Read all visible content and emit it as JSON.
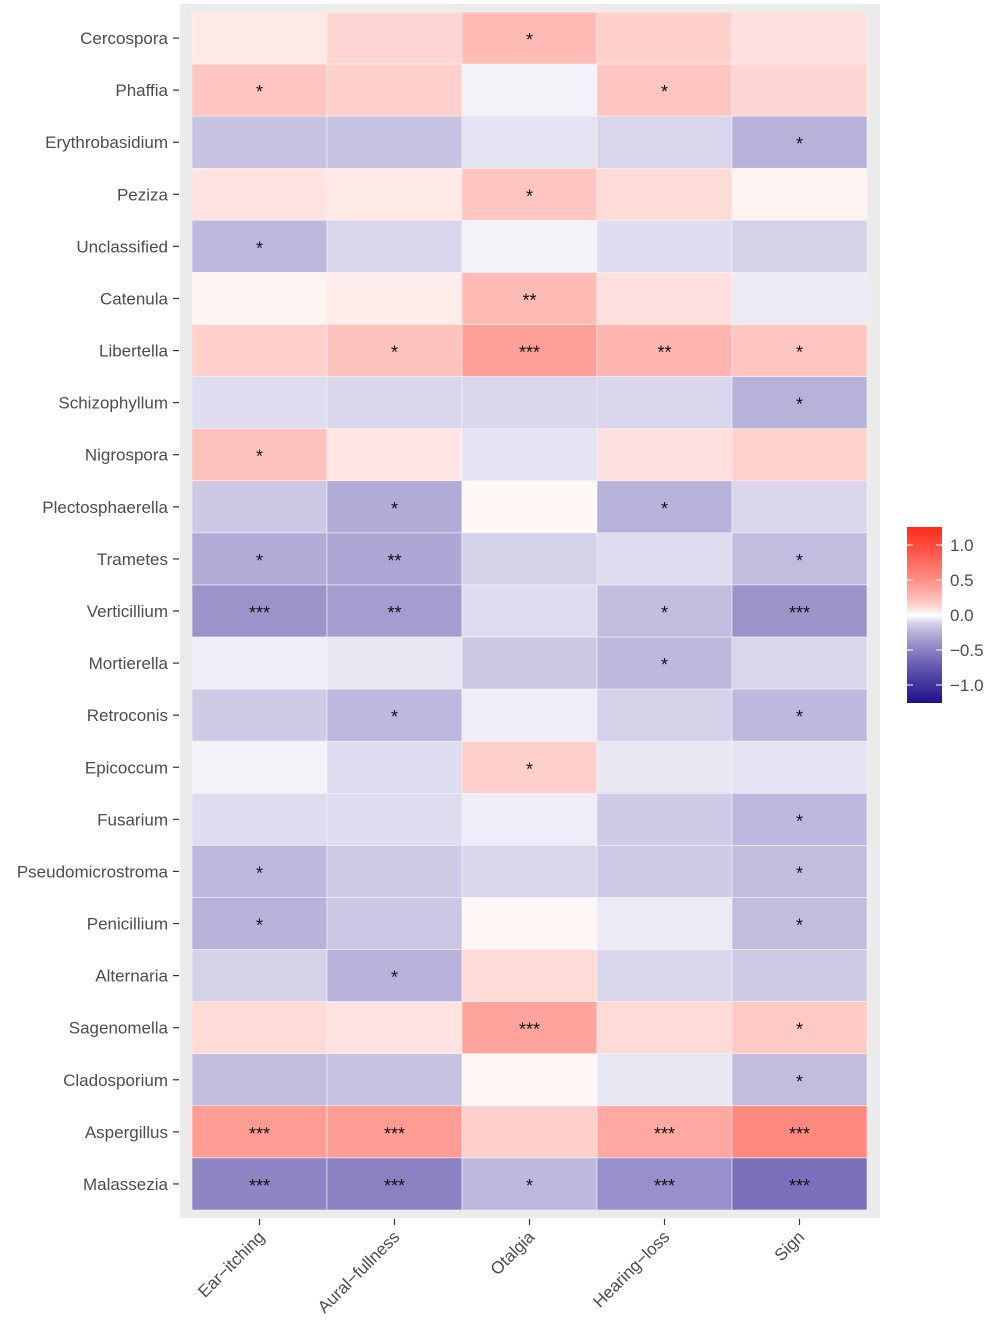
{
  "chart_data": {
    "type": "heatmap",
    "title": "",
    "xlabel": "",
    "ylabel": "",
    "x_categories": [
      "Ear−itching",
      "Aural−fullness",
      "Otalgia",
      "Hearing−loss",
      "Sign"
    ],
    "y_categories": [
      "Cercospora",
      "Phaffia",
      "Erythrobasidium",
      "Peziza",
      "Unclassified",
      "Catenula",
      "Libertella",
      "Schizophyllum",
      "Nigrospora",
      "Plectosphaerella",
      "Trametes",
      "Verticillium",
      "Mortierella",
      "Retroconis",
      "Epicoccum",
      "Fusarium",
      "Pseudomicrostroma",
      "Penicillium",
      "Alternaria",
      "Sagenomella",
      "Cladosporium",
      "Aspergillus",
      "Malassezia"
    ],
    "values": [
      [
        0.05,
        0.12,
        0.25,
        0.15,
        0.08
      ],
      [
        0.2,
        0.15,
        -0.02,
        0.2,
        0.12
      ],
      [
        -0.18,
        -0.18,
        -0.06,
        -0.1,
        -0.25
      ],
      [
        0.07,
        0.05,
        0.2,
        0.1,
        0.02
      ],
      [
        -0.22,
        -0.1,
        -0.02,
        -0.08,
        -0.12
      ],
      [
        0.02,
        0.04,
        0.25,
        0.08,
        -0.04
      ],
      [
        0.15,
        0.22,
        0.4,
        0.28,
        0.2
      ],
      [
        -0.08,
        -0.1,
        -0.1,
        -0.1,
        -0.25
      ],
      [
        0.22,
        0.06,
        -0.06,
        0.08,
        0.14
      ],
      [
        -0.15,
        -0.28,
        0.01,
        -0.25,
        -0.1
      ],
      [
        -0.28,
        -0.3,
        -0.12,
        -0.08,
        -0.2
      ],
      [
        -0.4,
        -0.35,
        -0.08,
        -0.2,
        -0.4
      ],
      [
        -0.03,
        -0.05,
        -0.15,
        -0.22,
        -0.1
      ],
      [
        -0.14,
        -0.22,
        -0.03,
        -0.12,
        -0.22
      ],
      [
        -0.02,
        -0.08,
        0.15,
        -0.05,
        -0.06
      ],
      [
        -0.08,
        -0.08,
        -0.03,
        -0.14,
        -0.22
      ],
      [
        -0.22,
        -0.14,
        -0.1,
        -0.14,
        -0.2
      ],
      [
        -0.25,
        -0.16,
        0.01,
        -0.04,
        -0.2
      ],
      [
        -0.12,
        -0.25,
        0.1,
        -0.1,
        -0.14
      ],
      [
        0.1,
        0.07,
        0.38,
        0.1,
        0.18
      ],
      [
        -0.2,
        -0.18,
        0.01,
        -0.05,
        -0.2
      ],
      [
        0.42,
        0.42,
        0.15,
        0.35,
        0.55
      ],
      [
        -0.48,
        -0.5,
        -0.22,
        -0.42,
        -0.6
      ]
    ],
    "significance": [
      [
        "",
        "",
        "*",
        "",
        ""
      ],
      [
        "*",
        "",
        "",
        "*",
        ""
      ],
      [
        "",
        "",
        "",
        "",
        "*"
      ],
      [
        "",
        "",
        "*",
        "",
        ""
      ],
      [
        "*",
        "",
        "",
        "",
        ""
      ],
      [
        "",
        "",
        "**",
        "",
        ""
      ],
      [
        "",
        "*",
        "***",
        "**",
        "*"
      ],
      [
        "",
        "",
        "",
        "",
        "*"
      ],
      [
        "*",
        "",
        "",
        "",
        ""
      ],
      [
        "",
        "*",
        "",
        "*",
        ""
      ],
      [
        "*",
        "**",
        "",
        "",
        "*"
      ],
      [
        "***",
        "**",
        "",
        "*",
        "***"
      ],
      [
        "",
        "",
        "",
        "*",
        ""
      ],
      [
        "",
        "*",
        "",
        "",
        "*"
      ],
      [
        "",
        "",
        "*",
        "",
        ""
      ],
      [
        "",
        "",
        "",
        "",
        "*"
      ],
      [
        "*",
        "",
        "",
        "",
        "*"
      ],
      [
        "*",
        "",
        "",
        "",
        "*"
      ],
      [
        "",
        "*",
        "",
        "",
        ""
      ],
      [
        "",
        "",
        "***",
        "",
        "*"
      ],
      [
        "",
        "",
        "",
        "",
        "*"
      ],
      [
        "***",
        "***",
        "",
        "***",
        "***"
      ],
      [
        "***",
        "***",
        "*",
        "***",
        "***"
      ]
    ],
    "color_scale": {
      "low": "#1f0f8c",
      "mid": "#ffffff",
      "high": "#ff2b1a",
      "limits": [
        -1.26,
        1.26
      ],
      "ticks": [
        1.0,
        0.5,
        0.0,
        -0.5,
        -1.0
      ],
      "tick_labels": [
        "1.0",
        "0.5",
        "0.0",
        "−0.5",
        "−1.0"
      ]
    },
    "legend_position": "right",
    "panel_background": "#ebebeb"
  }
}
